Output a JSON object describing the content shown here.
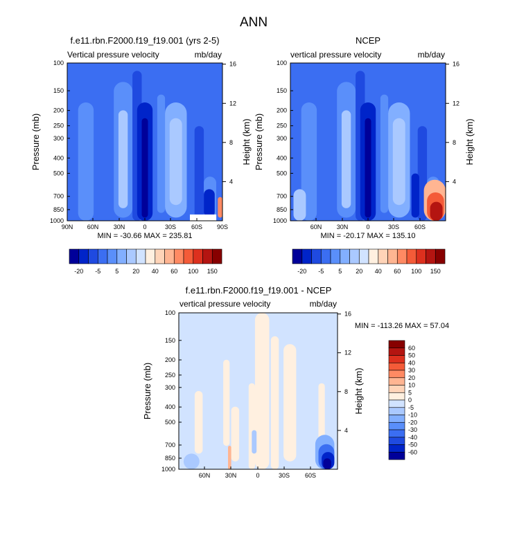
{
  "figure": {
    "title": "ANN",
    "colors": {
      "palette_12": [
        "#000099",
        "#0024c9",
        "#1f4ae0",
        "#3b6ef2",
        "#5a8ffa",
        "#82afff",
        "#aac9ff",
        "#d1e3ff",
        "#fff0e0",
        "#ffd4b8",
        "#ffb592",
        "#ff8a63",
        "#f45b38",
        "#dd301e",
        "#b41511",
        "#870000"
      ],
      "background_top": "#3b6ef2",
      "background_diff": "#d1e3ff"
    }
  },
  "chart_data": [
    {
      "type": "heatmap",
      "title": "f.e11.rbn.F2000.f19_f19.001 (yrs 2-5)",
      "left_label": "Vertical pressure velocity",
      "right_label": "mb/day",
      "ylabel": "Pressure (mb)",
      "ylabel_right": "Height (km)",
      "y_scale": "log",
      "ylim": [
        1000,
        100
      ],
      "y_ticks": [
        "100",
        "150",
        "200",
        "250",
        "300",
        "400",
        "500",
        "700",
        "850",
        "1000"
      ],
      "y_right_ticks": [
        "16",
        "12",
        "8",
        "4"
      ],
      "x_ticks": [
        "90N",
        "60N",
        "30N",
        "0",
        "30S",
        "60S",
        "90S"
      ],
      "min_max": "MIN = -30.66  MAX = 235.81",
      "colorbar_labels": [
        "-20",
        "-5",
        "5",
        "20",
        "40",
        "60",
        "100",
        "150"
      ]
    },
    {
      "type": "heatmap",
      "title": "NCEP",
      "left_label": "vertical pressure velocity",
      "right_label": "mb/day",
      "ylabel": "Pressure (mb)",
      "ylabel_right": "Height (km)",
      "y_scale": "log",
      "ylim": [
        1000,
        100
      ],
      "y_ticks": [
        "100",
        "150",
        "200",
        "250",
        "300",
        "400",
        "500",
        "700",
        "850",
        "1000"
      ],
      "y_right_ticks": [
        "16",
        "12",
        "8",
        "4"
      ],
      "x_ticks": [
        "60N",
        "30N",
        "0",
        "30S",
        "60S"
      ],
      "min_max": "MIN = -20.17  MAX = 135.10",
      "colorbar_labels": [
        "-20",
        "-5",
        "5",
        "20",
        "40",
        "60",
        "100",
        "150"
      ]
    },
    {
      "type": "heatmap",
      "title": "f.e11.rbn.F2000.f19_f19.001 - NCEP",
      "left_label": "vertical pressure velocity",
      "right_label": "mb/day",
      "ylabel": "Pressure (mb)",
      "ylabel_right": "Height (km)",
      "y_scale": "log",
      "ylim": [
        1000,
        100
      ],
      "y_ticks": [
        "100",
        "150",
        "200",
        "250",
        "300",
        "400",
        "500",
        "700",
        "850",
        "1000"
      ],
      "y_right_ticks": [
        "16",
        "12",
        "8",
        "4"
      ],
      "x_ticks": [
        "60N",
        "30N",
        "0",
        "30S",
        "60S"
      ],
      "min_max": "MIN = -113.26  MAX = 57.04",
      "colorbar_labels": [
        "60",
        "50",
        "40",
        "30",
        "20",
        "10",
        "5",
        "0",
        "-5",
        "-10",
        "-20",
        "-30",
        "-40",
        "-50",
        "-60"
      ],
      "colorbar_colors": [
        "#870000",
        "#b41511",
        "#dd301e",
        "#f45b38",
        "#ff8a63",
        "#ffb592",
        "#ffd4b8",
        "#fff0e0",
        "#d1e3ff",
        "#aac9ff",
        "#82afff",
        "#5a8ffa",
        "#3b6ef2",
        "#1f4ae0",
        "#0024c9",
        "#000099"
      ]
    }
  ]
}
